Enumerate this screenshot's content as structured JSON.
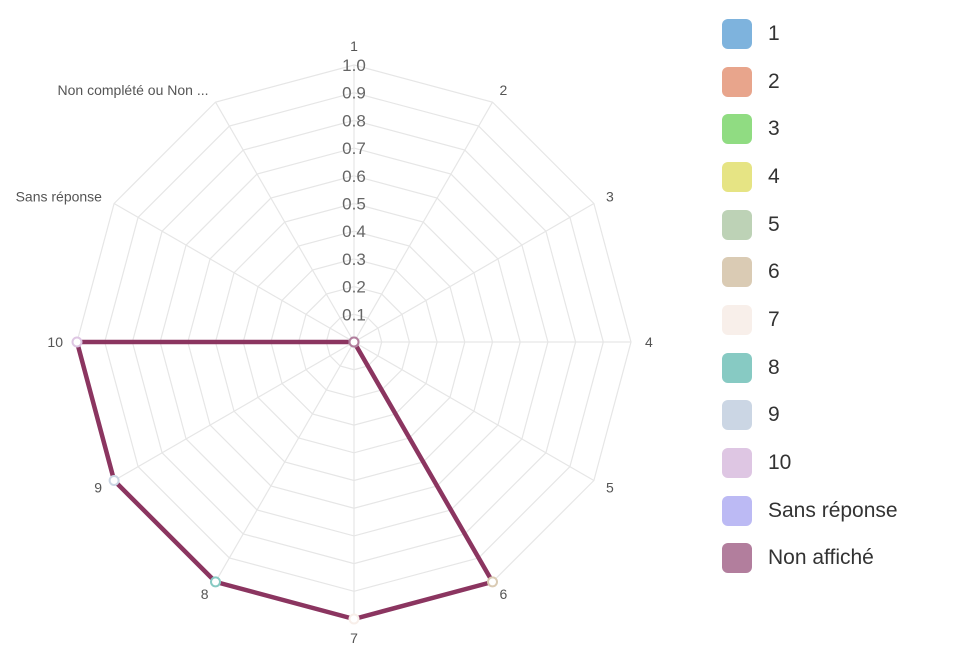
{
  "chart_data": {
    "type": "radar",
    "axes": [
      "1",
      "2",
      "3",
      "4",
      "5",
      "6",
      "7",
      "8",
      "9",
      "10",
      "Sans réponse",
      "Non complété ou Non ..."
    ],
    "radial_ticks": [
      "0.1",
      "0.2",
      "0.3",
      "0.4",
      "0.5",
      "0.6",
      "0.7",
      "0.8",
      "0.9",
      "1.0"
    ],
    "rlim": [
      0,
      1.0
    ],
    "grid": true,
    "legend_position": "right",
    "series": [
      {
        "name": "Non affiché",
        "color": "#8b3560",
        "values": [
          0,
          0,
          0,
          0,
          0,
          1.0,
          1.0,
          1.0,
          1.0,
          1.0,
          0,
          0
        ]
      }
    ],
    "point_colors": [
      "#7eb3dd",
      "#e8a58c",
      "#90dc82",
      "#e6e484",
      "#bdd2b6",
      "#dacbb4",
      "#f8efea",
      "#87cac3",
      "#cbd6e4",
      "#dec6e3",
      "#bcbaf4",
      "#b27e9d"
    ],
    "legend": [
      {
        "label": "1",
        "color": "#7eb3dd"
      },
      {
        "label": "2",
        "color": "#e8a58c"
      },
      {
        "label": "3",
        "color": "#90dc82"
      },
      {
        "label": "4",
        "color": "#e6e484"
      },
      {
        "label": "5",
        "color": "#bdd2b6"
      },
      {
        "label": "6",
        "color": "#dacbb4"
      },
      {
        "label": "7",
        "color": "#f8efea"
      },
      {
        "label": "8",
        "color": "#87cac3"
      },
      {
        "label": "9",
        "color": "#cbd6e4"
      },
      {
        "label": "10",
        "color": "#dec6e3"
      },
      {
        "label": "Sans réponse",
        "color": "#bcbaf4"
      },
      {
        "label": "Non affiché",
        "color": "#b27e9d"
      }
    ]
  }
}
